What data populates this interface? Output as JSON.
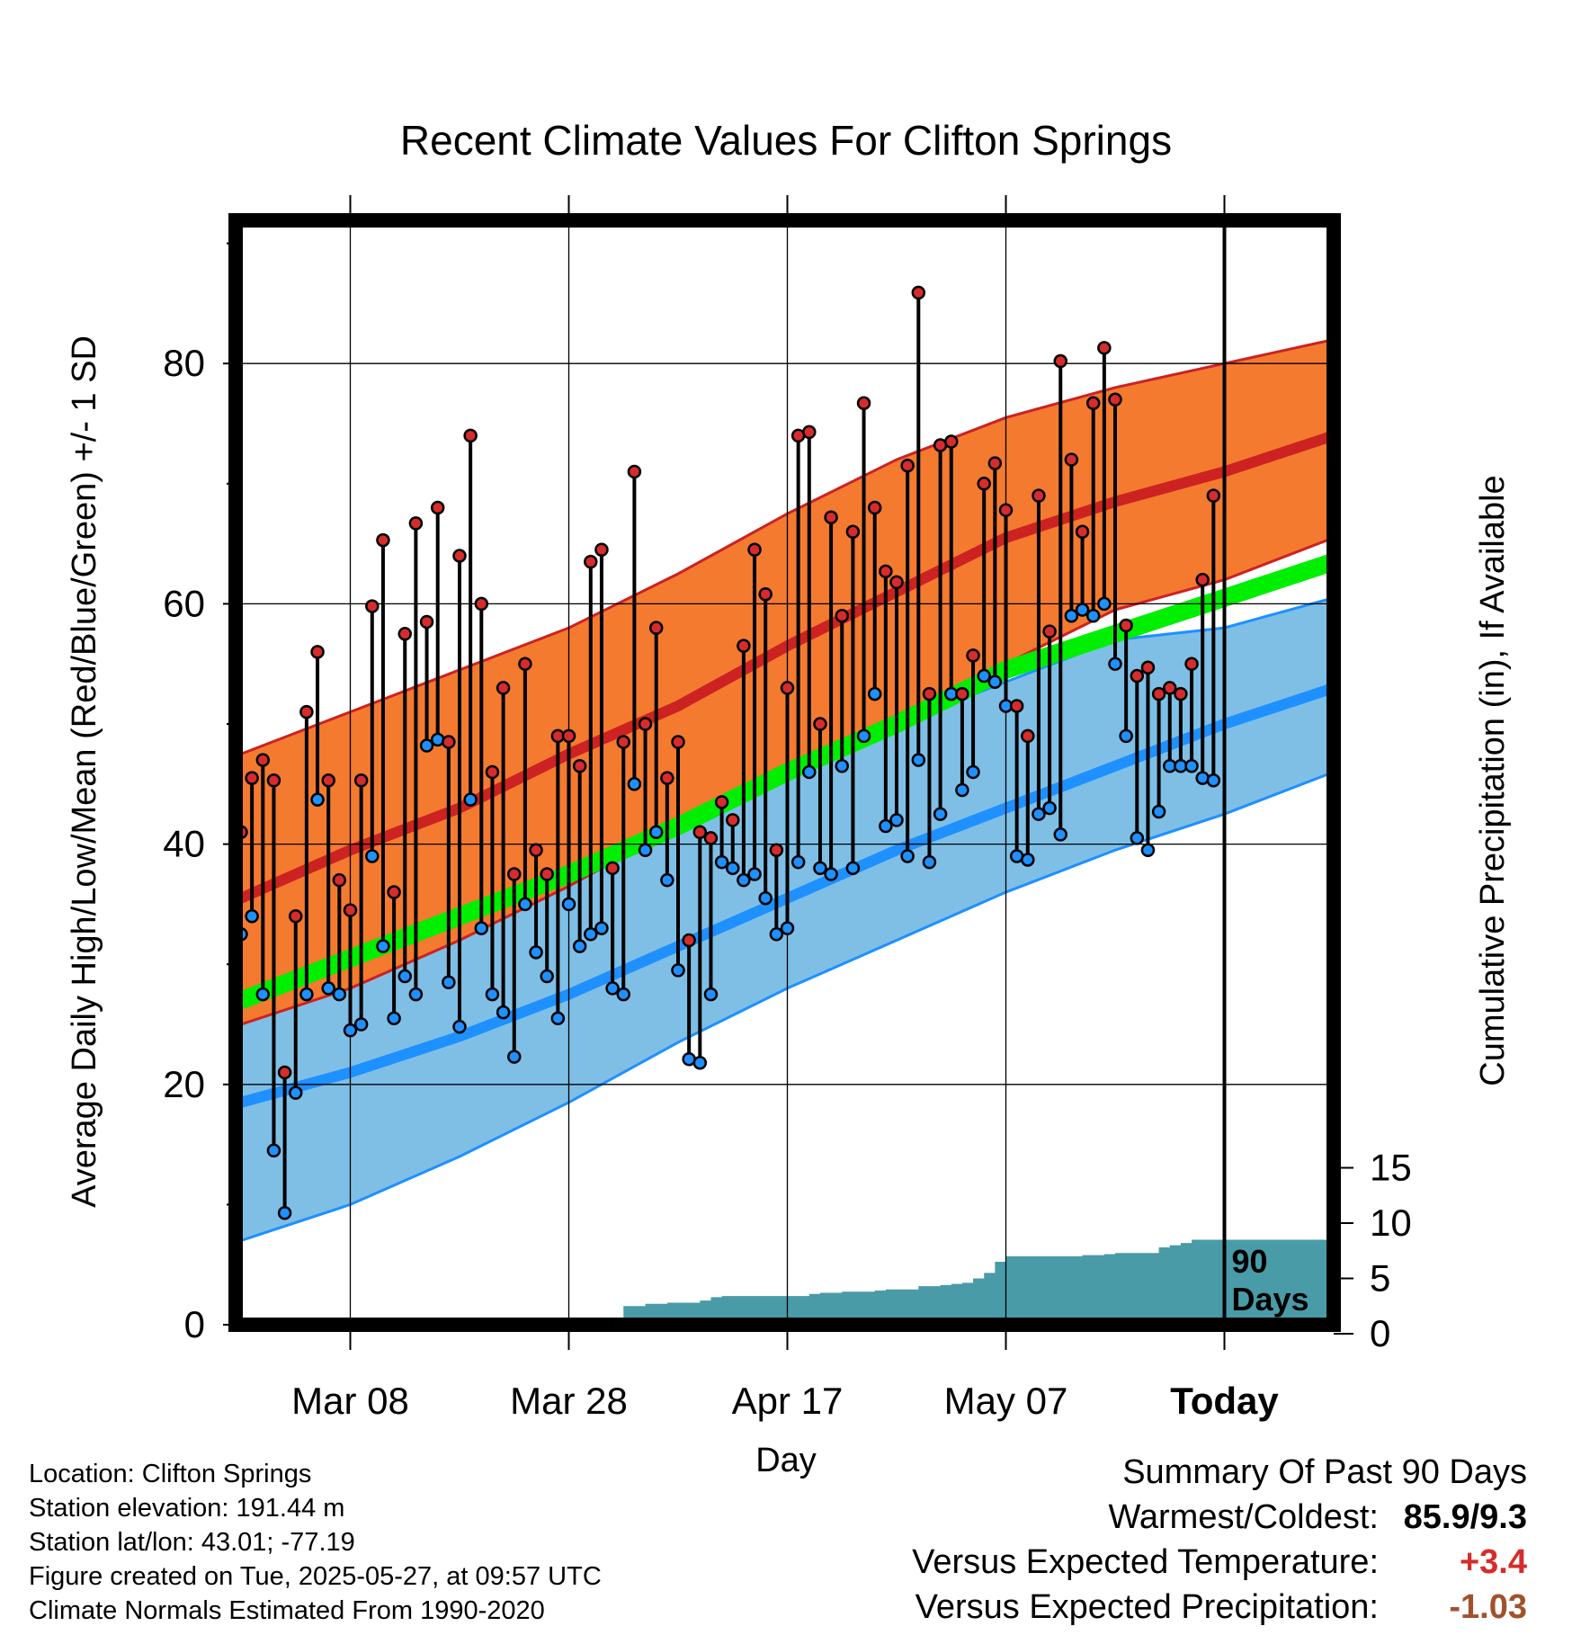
{
  "chart_data": {
    "type": "line",
    "title": "Recent Climate Values For Clifton Springs",
    "xlabel": "Day",
    "ylabel": "Average Daily High/Low/Mean (Red/Blue/Green) +/- 1 SD",
    "y2label": "Cumulative Precipitation (in), If Available",
    "xlim": [
      0,
      90
    ],
    "ylim": [
      0,
      90
    ],
    "y2lim": [
      0,
      20
    ],
    "x_ticks": [
      {
        "x": 10,
        "label": "Mar 08"
      },
      {
        "x": 30,
        "label": "Mar 28"
      },
      {
        "x": 50,
        "label": "Apr 17"
      },
      {
        "x": 70,
        "label": "May 07"
      },
      {
        "x": 90,
        "label": "Today"
      }
    ],
    "y_ticks": [
      "0",
      "20",
      "40",
      "60",
      "80"
    ],
    "y2_ticks": [
      "0",
      "5",
      "10",
      "15"
    ],
    "today_marker": {
      "x": 90,
      "label_line1": "90",
      "label_line2": "Days"
    },
    "normals": {
      "x": [
        0,
        10,
        20,
        30,
        40,
        50,
        60,
        70,
        80,
        90,
        100
      ],
      "high_mean": [
        35.5,
        39.5,
        43,
        47.5,
        51.5,
        56.5,
        61,
        65.5,
        68.5,
        71,
        74
      ],
      "high_upper": [
        47.5,
        51,
        54.5,
        58,
        62.5,
        67.5,
        72,
        75.5,
        78,
        80,
        82
      ],
      "high_lower": [
        25,
        28,
        32,
        36.5,
        41.5,
        46,
        50,
        55,
        59.5,
        62,
        65.5
      ],
      "low_mean": [
        18.5,
        21,
        24,
        27.5,
        31.5,
        35.5,
        39.5,
        43,
        46.5,
        50,
        53
      ],
      "low_upper": [
        30.5,
        32.5,
        35,
        38.5,
        42.5,
        46.5,
        50,
        53.5,
        57,
        58,
        60.5
      ],
      "low_lower": [
        7,
        10,
        14,
        18.5,
        23.5,
        28,
        32,
        36,
        39.5,
        42.5,
        46
      ],
      "avg_mean": [
        27,
        30.5,
        34,
        37.5,
        41.5,
        46,
        50,
        54.5,
        57.5,
        60.5,
        63.5
      ]
    },
    "series": [
      {
        "name": "Daily High",
        "x": [
          0,
          1,
          2,
          3,
          4,
          5,
          6,
          7,
          8,
          9,
          10,
          11,
          12,
          13,
          14,
          15,
          16,
          17,
          18,
          19,
          20,
          21,
          22,
          23,
          24,
          25,
          26,
          27,
          28,
          29,
          30,
          31,
          32,
          33,
          34,
          35,
          36,
          37,
          38,
          39,
          40,
          41,
          42,
          43,
          44,
          45,
          46,
          47,
          48,
          49,
          50,
          51,
          52,
          53,
          54,
          55,
          56,
          57,
          58,
          59,
          60,
          61,
          62,
          63,
          64,
          65,
          66,
          67,
          68,
          69,
          70,
          71,
          72,
          73,
          74,
          75,
          76,
          77,
          78,
          79,
          80,
          81,
          82,
          83,
          84,
          85,
          86,
          87,
          88,
          89
        ],
        "values": [
          41,
          45.5,
          47,
          45.3,
          21,
          34,
          51,
          56,
          45.3,
          37,
          34.5,
          45.3,
          59.8,
          65.3,
          36,
          57.5,
          66.7,
          58.5,
          68,
          48.5,
          64,
          74,
          60,
          46,
          53,
          37.5,
          55,
          39.5,
          37.5,
          49,
          49,
          46.5,
          63.5,
          64.5,
          38,
          48.5,
          71,
          50,
          58,
          45.5,
          48.5,
          32,
          41,
          40.5,
          43.5,
          42,
          56.5,
          64.5,
          60.8,
          39.5,
          53,
          74,
          74.3,
          50,
          67.2,
          59,
          66,
          76.7,
          68,
          62.7,
          61.8,
          71.5,
          85.9,
          52.5,
          73.2,
          73.5,
          52.5,
          55.7,
          70,
          71.7,
          67.8,
          51.5,
          49,
          69,
          57.7,
          80.2,
          72,
          66,
          76.7,
          81.3,
          77,
          58.2,
          54,
          54.7,
          52.5,
          53,
          52.5,
          55,
          62,
          69
        ]
      },
      {
        "name": "Daily Low",
        "x": [
          0,
          1,
          2,
          3,
          4,
          5,
          6,
          7,
          8,
          9,
          10,
          11,
          12,
          13,
          14,
          15,
          16,
          17,
          18,
          19,
          20,
          21,
          22,
          23,
          24,
          25,
          26,
          27,
          28,
          29,
          30,
          31,
          32,
          33,
          34,
          35,
          36,
          37,
          38,
          39,
          40,
          41,
          42,
          43,
          44,
          45,
          46,
          47,
          48,
          49,
          50,
          51,
          52,
          53,
          54,
          55,
          56,
          57,
          58,
          59,
          60,
          61,
          62,
          63,
          64,
          65,
          66,
          67,
          68,
          69,
          70,
          71,
          72,
          73,
          74,
          75,
          76,
          77,
          78,
          79,
          80,
          81,
          82,
          83,
          84,
          85,
          86,
          87,
          88,
          89
        ],
        "values": [
          32.5,
          34,
          27.5,
          14.5,
          9.3,
          19.3,
          27.5,
          43.7,
          28,
          27.5,
          24.5,
          25,
          39,
          31.5,
          25.5,
          29,
          27.5,
          48.2,
          48.7,
          28.5,
          24.8,
          43.7,
          33,
          27.5,
          26,
          22.3,
          35,
          31,
          29,
          25.5,
          35,
          31.5,
          32.5,
          33,
          28,
          27.5,
          45,
          39.5,
          41,
          37,
          29.5,
          22.1,
          21.8,
          27.5,
          38.5,
          38,
          37,
          37.5,
          35.5,
          32.5,
          33,
          38.5,
          46,
          38,
          37.5,
          46.5,
          38,
          49,
          52.5,
          41.5,
          42,
          39,
          47,
          38.5,
          42.5,
          52.5,
          44.5,
          46,
          54,
          53.5,
          51.5,
          39,
          38.7,
          42.5,
          43,
          40.8,
          59,
          59.5,
          59,
          60,
          55,
          49,
          40.5,
          39.5,
          42.7,
          46.5,
          46.5,
          46.5,
          45.5,
          45.3
        ]
      }
    ],
    "precip": {
      "x": [
        0,
        6,
        7,
        16,
        17,
        18,
        19,
        20,
        21,
        22,
        23,
        24,
        25,
        26,
        27,
        28,
        29,
        30,
        31,
        32,
        33,
        34,
        35,
        36,
        37,
        38,
        39,
        40,
        41,
        42,
        43,
        44,
        45,
        46,
        47,
        48,
        49,
        50,
        51,
        52,
        53,
        54,
        55,
        56,
        57,
        58,
        59,
        60,
        61,
        62,
        63,
        64,
        65,
        66,
        67,
        68,
        69,
        70,
        71,
        72,
        73,
        74,
        75,
        76,
        77,
        78,
        79,
        80,
        81,
        82,
        83,
        84,
        85,
        86,
        87,
        88,
        89,
        90,
        100
      ],
      "values": [
        0,
        0,
        0.1,
        0.1,
        0.2,
        0.5,
        0.5,
        0.5,
        0.5,
        0.6,
        0.7,
        0.7,
        0.7,
        0.7,
        0.8,
        0.8,
        0.8,
        0.8,
        0.9,
        1.0,
        1.0,
        1.0,
        2.5,
        2.5,
        2.7,
        2.7,
        2.8,
        2.8,
        2.8,
        3.0,
        3.3,
        3.4,
        3.4,
        3.4,
        3.4,
        3.4,
        3.4,
        3.4,
        3.4,
        3.6,
        3.7,
        3.7,
        3.8,
        3.8,
        3.8,
        3.9,
        4.0,
        4.0,
        4.0,
        4.3,
        4.3,
        4.4,
        4.5,
        4.6,
        5.0,
        5.5,
        6.5,
        7.0,
        7.0,
        7.0,
        7.0,
        7.0,
        7.0,
        7.0,
        7.1,
        7.1,
        7.2,
        7.3,
        7.3,
        7.3,
        7.3,
        7.8,
        8.0,
        8.2,
        8.5,
        8.5,
        8.5,
        8.5,
        8.5
      ]
    }
  },
  "info": {
    "location": "Location: Clifton Springs",
    "elevation": "Station elevation: 191.44 m",
    "latlon": "Station lat/lon: 43.01; -77.19",
    "created": "Figure created on Tue, 2025-05-27, at 09:57 UTC",
    "normals": "Climate Normals Estimated From 1990-2020"
  },
  "summary": {
    "title": "Summary Of Past 90 Days",
    "warm_cold_label": "Warmest/Coldest:",
    "warm_cold_value": "85.9/9.3",
    "temp_label": "Versus Expected Temperature:",
    "temp_value": "+3.4",
    "temp_color": "#d62c2c",
    "precip_label": "Versus Expected Precipitation:",
    "precip_value": "-1.03",
    "precip_color": "#a0522d"
  },
  "colors": {
    "high_band": "#f47a30",
    "high_line": "#cc2222",
    "low_band": "#7fbfe6",
    "low_line": "#1e90ff",
    "avg_line": "#00ee00",
    "precip_fill": "#4a9ba8",
    "high_marker": "#d62c2c",
    "low_marker": "#1e90ff"
  }
}
